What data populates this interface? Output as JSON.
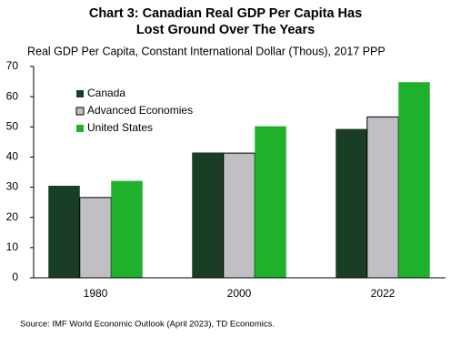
{
  "chart_data": {
    "type": "bar",
    "title": [
      "Chart 3: Canadian Real GDP Per Capita Has",
      "Lost Ground Over The Years"
    ],
    "y_label": "Real GDP Per Capita, Constant International Dollar (Thous), 2017 PPP",
    "source": "Source: IMF World Economic Outlook (April 2023), TD Economics.",
    "categories": [
      "1980",
      "2000",
      "2022"
    ],
    "series": [
      {
        "name": "Canada",
        "color": "#1a3d25",
        "values": [
          30.5,
          41.5,
          49.3
        ]
      },
      {
        "name": "Advanced Economies",
        "color": "#bfbfc4",
        "values": [
          26.6,
          41.3,
          53.3
        ]
      },
      {
        "name": "United States",
        "color": "#1fb02c",
        "values": [
          32.1,
          50.2,
          64.8
        ]
      }
    ],
    "ylim": [
      0,
      70
    ],
    "yticks": [
      0,
      10,
      20,
      30,
      40,
      50,
      60,
      70
    ],
    "grid": false,
    "legend": "upper-left"
  }
}
